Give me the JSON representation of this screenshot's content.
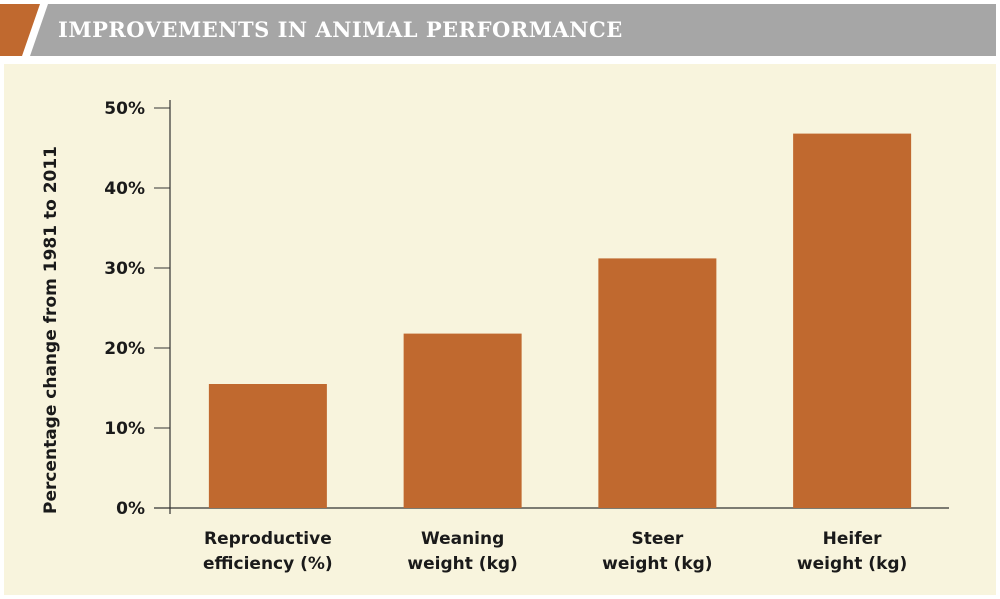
{
  "header": {
    "title": "IMPROVEMENTS IN ANIMAL PERFORMANCE"
  },
  "colors": {
    "accent": "#c0692f",
    "header_band": "#a6a6a6",
    "panel_bg": "#f8f4dd",
    "bar": "#c0692f",
    "axis": "#333333"
  },
  "chart_data": {
    "type": "bar",
    "title": "IMPROVEMENTS IN ANIMAL PERFORMANCE",
    "xlabel": "",
    "ylabel": "Percentage change from 1981 to 2011",
    "ylim": [
      0,
      50
    ],
    "yticks": [
      0,
      10,
      20,
      30,
      40,
      50
    ],
    "ytick_labels": [
      "0%",
      "10%",
      "20%",
      "30%",
      "40%",
      "50%"
    ],
    "categories": [
      [
        "Reproductive",
        "efficiency (%)"
      ],
      [
        "Weaning",
        "weight (kg)"
      ],
      [
        "Steer",
        "weight (kg)"
      ],
      [
        "Heifer",
        "weight (kg)"
      ]
    ],
    "values": [
      15.5,
      21.8,
      31.2,
      46.8
    ],
    "grid": false,
    "legend": "none"
  }
}
